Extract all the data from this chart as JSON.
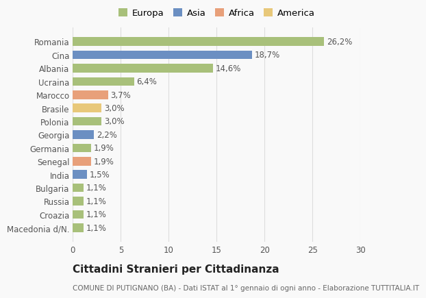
{
  "categories": [
    "Macedonia d/N.",
    "Croazia",
    "Russia",
    "Bulgaria",
    "India",
    "Senegal",
    "Germania",
    "Georgia",
    "Polonia",
    "Brasile",
    "Marocco",
    "Ucraina",
    "Albania",
    "Cina",
    "Romania"
  ],
  "values": [
    1.1,
    1.1,
    1.1,
    1.1,
    1.5,
    1.9,
    1.9,
    2.2,
    3.0,
    3.0,
    3.7,
    6.4,
    14.6,
    18.7,
    26.2
  ],
  "labels": [
    "1,1%",
    "1,1%",
    "1,1%",
    "1,1%",
    "1,5%",
    "1,9%",
    "1,9%",
    "2,2%",
    "3,0%",
    "3,0%",
    "3,7%",
    "6,4%",
    "14,6%",
    "18,7%",
    "26,2%"
  ],
  "colors": [
    "#a8c07a",
    "#a8c07a",
    "#a8c07a",
    "#a8c07a",
    "#6b8fc2",
    "#e8a07a",
    "#a8c07a",
    "#6b8fc2",
    "#a8c07a",
    "#e8c87a",
    "#e8a07a",
    "#a8c07a",
    "#a8c07a",
    "#6b8fc2",
    "#a8c07a"
  ],
  "legend_labels": [
    "Europa",
    "Asia",
    "Africa",
    "America"
  ],
  "legend_colors": [
    "#a8c07a",
    "#6b8fc2",
    "#e8a07a",
    "#e8c87a"
  ],
  "title": "Cittadini Stranieri per Cittadinanza",
  "subtitle": "COMUNE DI PUTIGNANO (BA) - Dati ISTAT al 1° gennaio di ogni anno - Elaborazione TUTTITALIA.IT",
  "xlim": [
    0,
    30
  ],
  "xticks": [
    0,
    5,
    10,
    15,
    20,
    25,
    30
  ],
  "background_color": "#f9f9f9",
  "grid_color": "#dddddd",
  "bar_height": 0.65,
  "label_fontsize": 8.5,
  "tick_fontsize": 8.5,
  "title_fontsize": 11,
  "subtitle_fontsize": 7.5
}
